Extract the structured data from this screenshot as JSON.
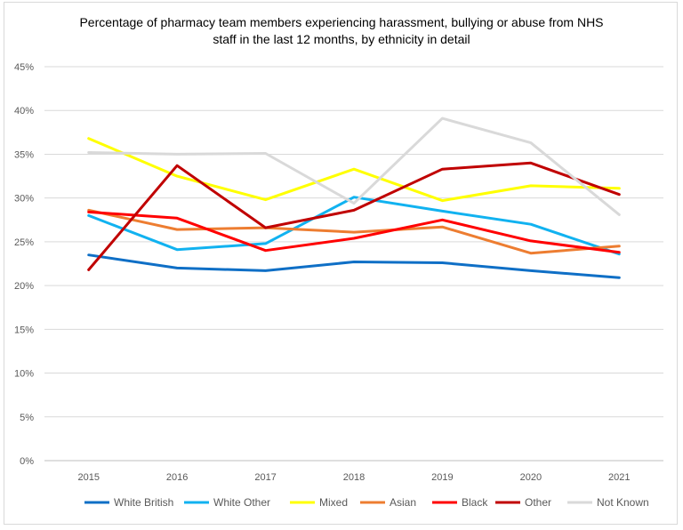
{
  "chart_data": {
    "type": "line",
    "title_line1": "Percentage of pharmacy team members experiencing harassment, bullying or abuse from NHS",
    "title_line2": "staff in the last 12 months, by ethnicity in detail",
    "xlabel": "",
    "ylabel": "",
    "categories": [
      "2015",
      "2016",
      "2017",
      "2018",
      "2019",
      "2020",
      "2021"
    ],
    "ylim": [
      0,
      45
    ],
    "yticks": [
      0,
      5,
      10,
      15,
      20,
      25,
      30,
      35,
      40,
      45
    ],
    "ytick_labels": [
      "0%",
      "5%",
      "10%",
      "15%",
      "20%",
      "25%",
      "30%",
      "35%",
      "40%",
      "45%"
    ],
    "grid": true,
    "legend_position": "bottom",
    "series": [
      {
        "name": "White British",
        "color": "#0f6fc6",
        "values": [
          23.5,
          22.0,
          21.7,
          22.7,
          22.6,
          21.7,
          20.9
        ]
      },
      {
        "name": "White Other",
        "color": "#11b2f0",
        "values": [
          28.0,
          24.1,
          24.8,
          30.1,
          28.5,
          27.0,
          23.6
        ]
      },
      {
        "name": "Mixed",
        "color": "#ffff00",
        "values": [
          36.8,
          32.5,
          29.8,
          33.3,
          29.7,
          31.4,
          31.1
        ]
      },
      {
        "name": "Asian",
        "color": "#ed7d31",
        "values": [
          28.6,
          26.4,
          26.6,
          26.1,
          26.7,
          23.7,
          24.5
        ]
      },
      {
        "name": "Black",
        "color": "#ff0000",
        "values": [
          28.4,
          27.7,
          24.0,
          25.4,
          27.5,
          25.1,
          23.8
        ]
      },
      {
        "name": "Other",
        "color": "#c00000",
        "values": [
          21.8,
          33.7,
          26.6,
          28.6,
          33.3,
          34.0,
          30.4
        ]
      },
      {
        "name": "Not Known",
        "color": "#d9d9d9",
        "values": [
          35.2,
          35.0,
          35.1,
          29.4,
          39.1,
          36.3,
          28.1
        ]
      }
    ]
  }
}
